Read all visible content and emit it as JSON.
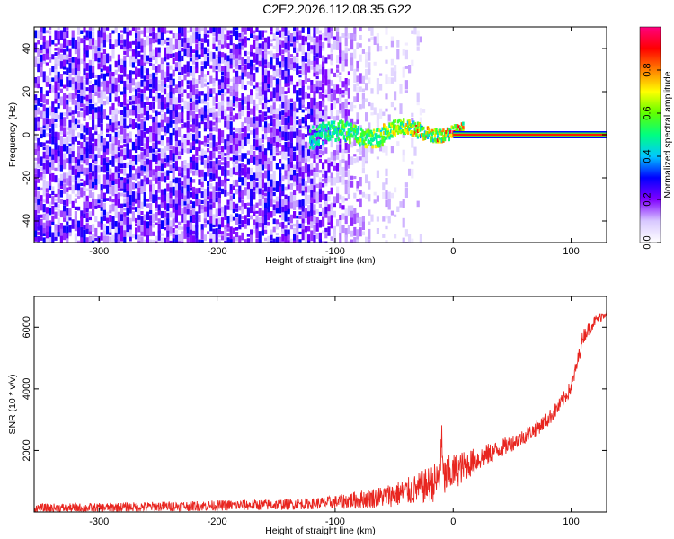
{
  "title": "C2E2.2026.112.08.35.G22",
  "chart_data": [
    {
      "type": "heatmap",
      "xlabel": "Height of straight line (km)",
      "ylabel": "Frequency (Hz)",
      "xlim": [
        -355,
        130
      ],
      "ylim": [
        -50,
        50
      ],
      "xticks": [
        -300,
        -200,
        -100,
        0,
        100
      ],
      "yticks": [
        -40,
        -20,
        0,
        20,
        40
      ],
      "colorbar": {
        "label": "Normalized spectral amplitude",
        "range": [
          0,
          1
        ],
        "ticks": [
          0.0,
          0.2,
          0.4,
          0.6,
          0.8
        ],
        "colors": [
          "#ffffff",
          "#d8c8ff",
          "#8000ff",
          "#0000ff",
          "#00c8ff",
          "#00ff80",
          "#60ff00",
          "#ffff00",
          "#ff8000",
          "#ff0000",
          "#ff0080"
        ]
      },
      "features": [
        {
          "region": "x < -120 km",
          "description": "broadband low-amplitude noise across all frequencies",
          "amplitude": 0.15
        },
        {
          "region": "-120 to -20 km",
          "description": "signal emerging near 0 Hz with fluctuations",
          "freq_range": [
            -3,
            5
          ],
          "amplitude": 0.5
        },
        {
          "region": "x > 5 km",
          "description": "stable narrow line at 0 Hz",
          "frequency": 0,
          "amplitude": 0.95
        }
      ],
      "grid": false
    },
    {
      "type": "line",
      "xlabel": "Height of straight line (km)",
      "ylabel": "SNR (10 * v/v)",
      "xlim": [
        -355,
        130
      ],
      "ylim": [
        0,
        7000
      ],
      "xticks": [
        -300,
        -200,
        -100,
        0,
        100
      ],
      "yticks": [
        2000,
        4000,
        6000
      ],
      "series": [
        {
          "color": "#e8251f",
          "x": [
            -355,
            -300,
            -250,
            -200,
            -150,
            -120,
            -100,
            -80,
            -60,
            -40,
            -30,
            -20,
            -10,
            0,
            20,
            40,
            60,
            70,
            80,
            90,
            100,
            105,
            110,
            120,
            130
          ],
          "y": [
            120,
            140,
            180,
            210,
            240,
            270,
            320,
            400,
            500,
            650,
            750,
            900,
            1050,
            1300,
            1700,
            2050,
            2450,
            2700,
            3000,
            3450,
            4050,
            4800,
            5700,
            6200,
            6500
          ],
          "noise": [
            150,
            150,
            160,
            170,
            180,
            180,
            220,
            300,
            350,
            450,
            500,
            600,
            700,
            600,
            400,
            300,
            250,
            250,
            250,
            250,
            250,
            260,
            250,
            180,
            160
          ]
        }
      ],
      "grid": false
    }
  ]
}
